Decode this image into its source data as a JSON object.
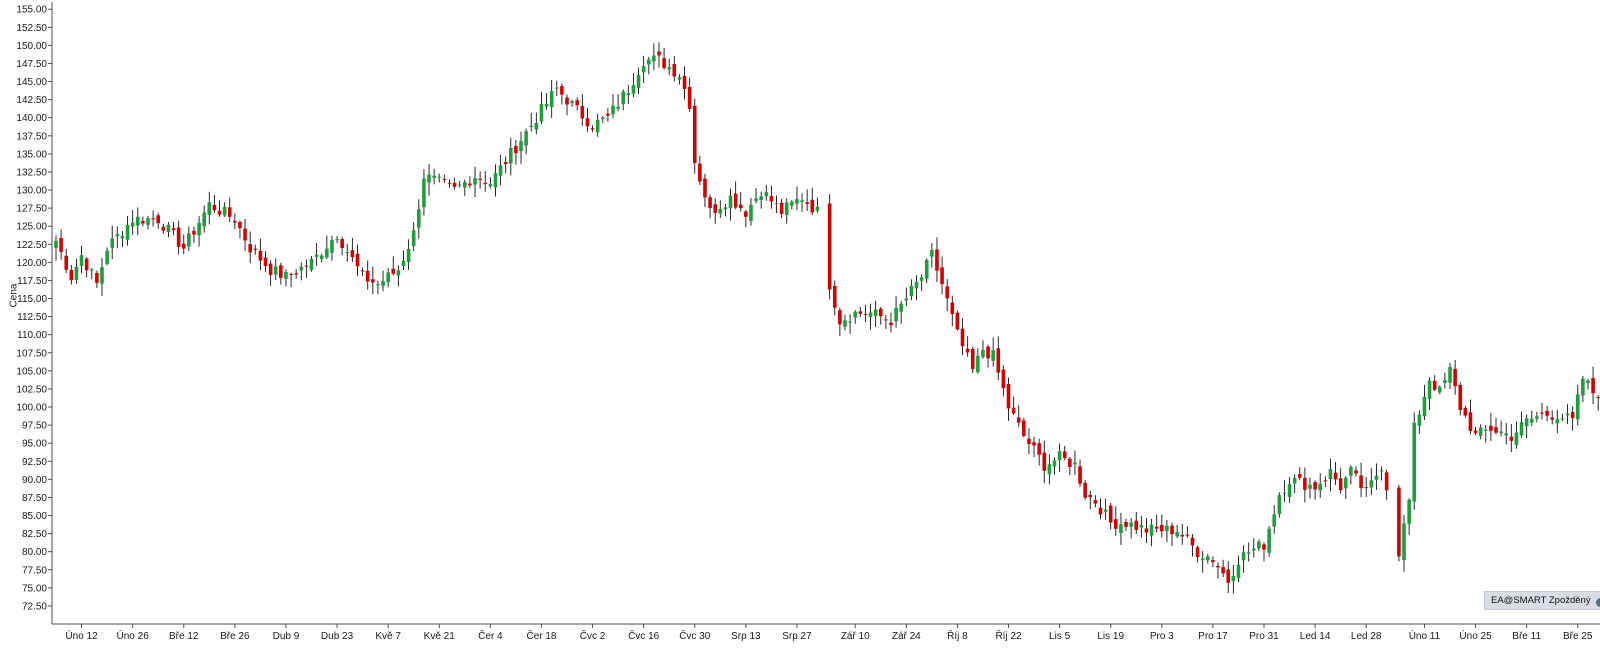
{
  "chart_data": {
    "type": "candlestick",
    "ylabel": "Cena",
    "ylim": [
      70.0,
      156.0
    ],
    "y_ticks": [
      "155.00",
      "152.50",
      "150.00",
      "147.50",
      "145.00",
      "142.50",
      "140.00",
      "137.50",
      "135.00",
      "132.50",
      "130.00",
      "127.50",
      "125.00",
      "122.50",
      "120.00",
      "117.50",
      "115.00",
      "112.50",
      "110.00",
      "107.50",
      "105.00",
      "102.50",
      "100.00",
      "97.50",
      "95.00",
      "92.50",
      "90.00",
      "87.50",
      "85.00",
      "82.50",
      "80.00",
      "77.50",
      "75.00",
      "72.50"
    ],
    "y_tick_values": [
      155,
      152.5,
      150,
      147.5,
      145,
      142.5,
      140,
      137.5,
      135,
      132.5,
      130,
      127.5,
      125,
      122.5,
      120,
      117.5,
      115,
      112.5,
      110,
      107.5,
      105,
      102.5,
      100,
      97.5,
      95,
      92.5,
      90,
      87.5,
      85,
      82.5,
      80,
      77.5,
      75,
      72.5
    ],
    "x_ticks": [
      {
        "label": "Úno 12",
        "index": 5
      },
      {
        "label": "Úno 26",
        "index": 15
      },
      {
        "label": "Bře 12",
        "index": 25
      },
      {
        "label": "Bře 26",
        "index": 35
      },
      {
        "label": "Dub 9",
        "index": 45
      },
      {
        "label": "Dub 23",
        "index": 55
      },
      {
        "label": "Kvě 7",
        "index": 65
      },
      {
        "label": "Kvě 21",
        "index": 75
      },
      {
        "label": "Čer 4",
        "index": 85
      },
      {
        "label": "Čer 18",
        "index": 95
      },
      {
        "label": "Čvc 2",
        "index": 105
      },
      {
        "label": "Čvc 16",
        "index": 115
      },
      {
        "label": "Čvc 30",
        "index": 125
      },
      {
        "label": "Srp 13",
        "index": 135
      },
      {
        "label": "Srp 27",
        "index": 145
      },
      {
        "label": "Zář 10",
        "index": 155
      },
      {
        "label": "Zář 24",
        "index": 165
      },
      {
        "label": "Říj 8",
        "index": 175
      },
      {
        "label": "Říj 22",
        "index": 185
      },
      {
        "label": "Lis 5",
        "index": 195
      },
      {
        "label": "Lis 19",
        "index": 205
      },
      {
        "label": "Pro 3",
        "index": 215
      },
      {
        "label": "Pro 17",
        "index": 225
      },
      {
        "label": "Pro 31",
        "index": 235
      },
      {
        "label": "Led 14",
        "index": 245
      },
      {
        "label": "Led 28",
        "index": 255
      },
      {
        "label": "Úno 11",
        "index": 265
      },
      {
        "label": "Úno 25",
        "index": 275
      },
      {
        "label": "Bře 11",
        "index": 285
      },
      {
        "label": "Bře 25",
        "index": 295
      }
    ],
    "gaps_after_index": [
      149,
      259
    ],
    "close_path": [
      [
        0,
        123
      ],
      [
        3,
        118
      ],
      [
        5,
        121
      ],
      [
        8,
        117
      ],
      [
        10,
        122
      ],
      [
        15,
        126
      ],
      [
        20,
        126
      ],
      [
        25,
        122
      ],
      [
        30,
        128
      ],
      [
        35,
        126
      ],
      [
        38,
        122
      ],
      [
        42,
        119
      ],
      [
        45,
        118
      ],
      [
        50,
        120
      ],
      [
        55,
        124
      ],
      [
        60,
        118
      ],
      [
        63,
        117
      ],
      [
        67,
        119
      ],
      [
        70,
        124
      ],
      [
        72,
        132
      ],
      [
        75,
        131
      ],
      [
        78,
        130
      ],
      [
        82,
        132
      ],
      [
        85,
        131
      ],
      [
        88,
        134
      ],
      [
        92,
        138
      ],
      [
        95,
        141
      ],
      [
        98,
        144
      ],
      [
        102,
        141
      ],
      [
        105,
        139
      ],
      [
        108,
        140
      ],
      [
        112,
        144
      ],
      [
        115,
        148
      ],
      [
        118,
        148
      ],
      [
        122,
        146
      ],
      [
        124,
        142
      ],
      [
        125,
        134
      ],
      [
        128,
        127
      ],
      [
        132,
        129
      ],
      [
        135,
        127
      ],
      [
        138,
        130
      ],
      [
        142,
        127
      ],
      [
        146,
        129
      ],
      [
        149,
        127
      ],
      [
        150,
        117
      ],
      [
        152,
        112
      ],
      [
        155,
        113
      ],
      [
        158,
        113
      ],
      [
        162,
        112
      ],
      [
        165,
        115
      ],
      [
        168,
        118
      ],
      [
        170,
        121
      ],
      [
        172,
        117
      ],
      [
        175,
        110
      ],
      [
        178,
        105
      ],
      [
        180,
        108
      ],
      [
        182,
        107
      ],
      [
        185,
        100
      ],
      [
        188,
        96
      ],
      [
        190,
        94
      ],
      [
        192,
        92
      ],
      [
        195,
        93
      ],
      [
        198,
        92
      ],
      [
        200,
        88
      ],
      [
        202,
        87
      ],
      [
        205,
        84
      ],
      [
        208,
        84
      ],
      [
        212,
        83
      ],
      [
        215,
        83
      ],
      [
        218,
        83
      ],
      [
        222,
        80
      ],
      [
        225,
        79
      ],
      [
        228,
        76
      ],
      [
        230,
        79
      ],
      [
        232,
        80
      ],
      [
        235,
        81
      ],
      [
        238,
        88
      ],
      [
        240,
        90
      ],
      [
        245,
        89
      ],
      [
        248,
        91
      ],
      [
        250,
        89
      ],
      [
        252,
        91
      ],
      [
        255,
        88
      ],
      [
        258,
        92
      ],
      [
        259,
        89
      ],
      [
        260,
        80
      ],
      [
        262,
        87
      ],
      [
        263,
        97
      ],
      [
        266,
        104
      ],
      [
        268,
        102
      ],
      [
        270,
        105
      ],
      [
        272,
        100
      ],
      [
        275,
        96
      ],
      [
        278,
        97
      ],
      [
        282,
        96
      ],
      [
        285,
        98
      ],
      [
        288,
        99
      ],
      [
        291,
        99
      ],
      [
        294,
        98
      ],
      [
        296,
        104
      ],
      [
        298,
        102
      ],
      [
        300,
        102
      ],
      [
        302,
        100
      ],
      [
        304,
        98
      ]
    ],
    "seed": 7
  },
  "source_badge": {
    "label": "EA@SMART Zpožděný",
    "icon": "info-icon"
  },
  "colors": {
    "up": "#1e9e3c",
    "down": "#d50000",
    "wick": "#111111",
    "axis": "#4d4d4d",
    "grid": "#e6e6e6",
    "badge_bg": "#d9dde3"
  }
}
